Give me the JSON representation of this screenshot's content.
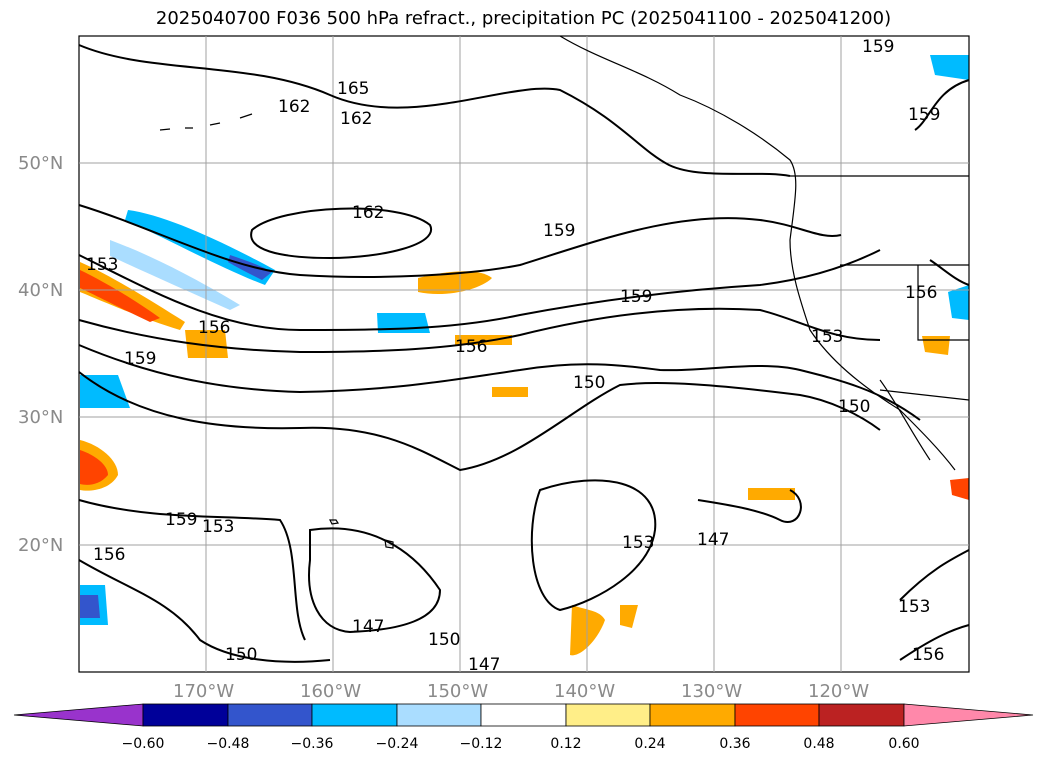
{
  "title": "2025040700 F036 500 hPa refract., precipitation PC (2025041100 - 2025041200)",
  "map": {
    "lat_labels": [
      "50°N",
      "40°N",
      "30°N",
      "20°N"
    ],
    "lon_labels": [
      "170°W",
      "160°W",
      "150°W",
      "140°W",
      "130°W",
      "120°W"
    ],
    "contour_labels": [
      "159",
      "165",
      "162",
      "162",
      "159",
      "162",
      "159",
      "159",
      "153",
      "156",
      "156",
      "159",
      "156",
      "153",
      "150",
      "150",
      "153",
      "159",
      "156",
      "153",
      "147",
      "150",
      "150",
      "147",
      "147",
      "153",
      "156"
    ],
    "gridline_color": "#a0a0a0",
    "label_color": "#8a8a8a"
  },
  "colorbar": {
    "ticks": [
      "−0.60",
      "−0.48",
      "−0.36",
      "−0.24",
      "−0.12",
      "0.12",
      "0.24",
      "0.36",
      "0.48",
      "0.60"
    ],
    "colors": [
      "#9933cc",
      "#000099",
      "#3355cc",
      "#00bbff",
      "#aaddff",
      "#ffffff",
      "#ffee88",
      "#ffaa00",
      "#ff4400",
      "#bb2222",
      "#ff88aa"
    ]
  }
}
